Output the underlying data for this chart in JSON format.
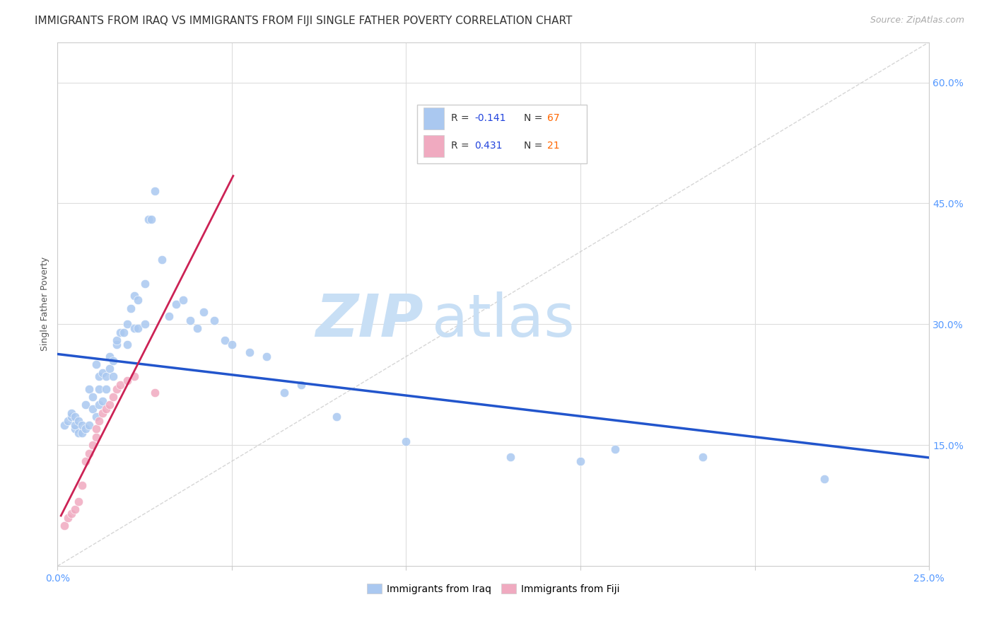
{
  "title": "IMMIGRANTS FROM IRAQ VS IMMIGRANTS FROM FIJI SINGLE FATHER POVERTY CORRELATION CHART",
  "source": "Source: ZipAtlas.com",
  "ylabel": "Single Father Poverty",
  "xlim": [
    0.0,
    0.25
  ],
  "ylim": [
    0.0,
    0.65
  ],
  "xtick_labels": [
    "0.0%",
    "",
    "",
    "",
    "",
    "25.0%"
  ],
  "xtick_vals": [
    0.0,
    0.05,
    0.1,
    0.15,
    0.2,
    0.25
  ],
  "ytick_labels": [
    "15.0%",
    "30.0%",
    "45.0%",
    "60.0%"
  ],
  "ytick_vals": [
    0.15,
    0.3,
    0.45,
    0.6
  ],
  "iraq_color": "#aac8f0",
  "fiji_color": "#f0aac0",
  "iraq_R": -0.141,
  "iraq_N": 67,
  "fiji_R": 0.431,
  "fiji_N": 21,
  "legend_R_color": "#2244dd",
  "legend_N_color": "#ff6600",
  "legend_label_color": "#333333",
  "iraq_line_color": "#2255cc",
  "fiji_line_color": "#cc2255",
  "diagonal_color": "#cccccc",
  "background_color": "#ffffff",
  "grid_color": "#dddddd",
  "title_color": "#333333",
  "source_color": "#aaaaaa",
  "ylabel_color": "#555555",
  "tick_color": "#5599ff",
  "title_fontsize": 11,
  "axis_label_fontsize": 9,
  "tick_fontsize": 10,
  "marker_size": 80,
  "iraq_points_x": [
    0.002,
    0.003,
    0.004,
    0.004,
    0.005,
    0.005,
    0.005,
    0.006,
    0.006,
    0.007,
    0.007,
    0.008,
    0.008,
    0.009,
    0.009,
    0.01,
    0.01,
    0.011,
    0.011,
    0.012,
    0.012,
    0.012,
    0.013,
    0.013,
    0.014,
    0.014,
    0.015,
    0.015,
    0.016,
    0.016,
    0.017,
    0.017,
    0.018,
    0.019,
    0.02,
    0.02,
    0.021,
    0.022,
    0.022,
    0.023,
    0.023,
    0.025,
    0.025,
    0.026,
    0.027,
    0.028,
    0.03,
    0.032,
    0.034,
    0.036,
    0.038,
    0.04,
    0.042,
    0.045,
    0.048,
    0.05,
    0.055,
    0.06,
    0.065,
    0.07,
    0.08,
    0.1,
    0.13,
    0.15,
    0.16,
    0.185,
    0.22
  ],
  "iraq_points_y": [
    0.175,
    0.18,
    0.185,
    0.19,
    0.17,
    0.175,
    0.185,
    0.165,
    0.18,
    0.165,
    0.175,
    0.17,
    0.2,
    0.175,
    0.22,
    0.195,
    0.21,
    0.185,
    0.25,
    0.2,
    0.22,
    0.235,
    0.205,
    0.24,
    0.22,
    0.235,
    0.245,
    0.26,
    0.235,
    0.255,
    0.275,
    0.28,
    0.29,
    0.29,
    0.275,
    0.3,
    0.32,
    0.295,
    0.335,
    0.295,
    0.33,
    0.3,
    0.35,
    0.43,
    0.43,
    0.465,
    0.38,
    0.31,
    0.325,
    0.33,
    0.305,
    0.295,
    0.315,
    0.305,
    0.28,
    0.275,
    0.265,
    0.26,
    0.215,
    0.225,
    0.185,
    0.155,
    0.135,
    0.13,
    0.145,
    0.135,
    0.108
  ],
  "fiji_points_x": [
    0.002,
    0.003,
    0.004,
    0.005,
    0.006,
    0.007,
    0.008,
    0.009,
    0.01,
    0.011,
    0.011,
    0.012,
    0.013,
    0.014,
    0.015,
    0.016,
    0.017,
    0.018,
    0.02,
    0.022,
    0.028
  ],
  "fiji_points_y": [
    0.05,
    0.06,
    0.065,
    0.07,
    0.08,
    0.1,
    0.13,
    0.14,
    0.15,
    0.16,
    0.17,
    0.18,
    0.19,
    0.195,
    0.2,
    0.21,
    0.22,
    0.225,
    0.23,
    0.235,
    0.215
  ],
  "watermark_zip_color": "#c8dff5",
  "watermark_atlas_color": "#c8dff5"
}
